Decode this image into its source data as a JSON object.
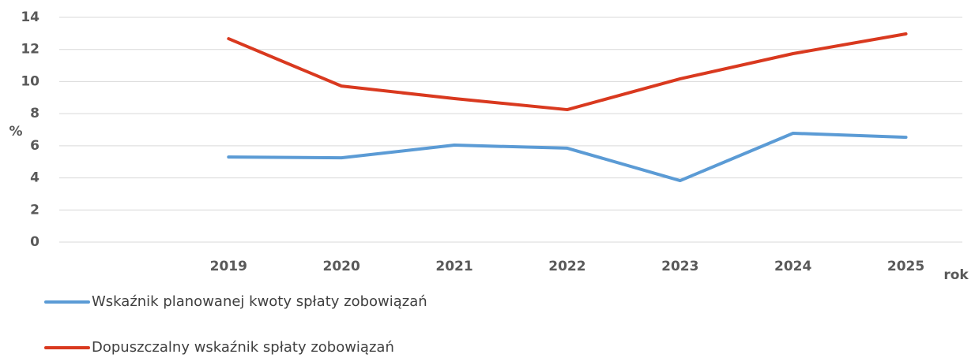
{
  "chart_data": {
    "type": "line",
    "categories": [
      null,
      "2019",
      "2020",
      "2021",
      "2022",
      "2023",
      "2024",
      "2025"
    ],
    "series": [
      {
        "name": "Wskaźnik planowanej kwoty spłaty zobowiązań",
        "color": "#5b9bd5",
        "values": [
          null,
          5.3,
          5.25,
          6.04,
          5.85,
          3.83,
          6.78,
          6.53
        ]
      },
      {
        "name": "Dopuszczalny wskaźnik spłaty zobowiązań",
        "color": "#d9391f",
        "values": [
          null,
          12.67,
          9.72,
          8.94,
          8.25,
          10.17,
          11.74,
          12.97
        ]
      }
    ],
    "ylabel": "%",
    "xlabel": "rok",
    "ylim": [
      0,
      14
    ],
    "yticks": [
      0,
      2,
      4,
      6,
      8,
      10,
      12,
      14
    ],
    "grid": true
  }
}
